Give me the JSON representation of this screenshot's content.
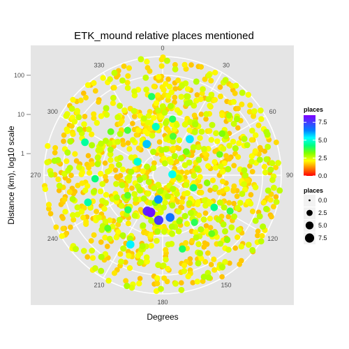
{
  "chart_data": {
    "type": "scatter",
    "coord": "polar",
    "title": "ETK_mound relative places mentioned",
    "xlabel": "Degrees",
    "ylabel": "Distance (km), log10 scale",
    "theta_ticks": [
      0,
      30,
      60,
      90,
      120,
      150,
      180,
      210,
      240,
      270,
      300,
      330
    ],
    "theta_labels": [
      "0",
      "30",
      "60",
      "90",
      "120",
      "150",
      "180",
      "210",
      "240",
      "270",
      "300",
      "330"
    ],
    "r_scale": "log10",
    "r_ticks": [
      1,
      10,
      100
    ],
    "r_tick_labels": [
      "1",
      "10",
      "100"
    ],
    "r_limits": [
      0.5,
      300
    ],
    "panel_background": "#e5e5e5",
    "grid": true,
    "legend_position": "right",
    "color_legend": {
      "title": "places",
      "labels": [
        "0.0",
        "2.5",
        "5.0",
        "7.5"
      ],
      "range": [
        0,
        8.5
      ],
      "colors": [
        "#ff0000",
        "#ff8000",
        "#ffff00",
        "#80ff00",
        "#00ff80",
        "#00ffff",
        "#0080ff",
        "#4040ff",
        "#8000ff"
      ]
    },
    "size_legend": {
      "title": "places",
      "labels": [
        "0.0",
        "2.5",
        "5.0",
        "7.5"
      ],
      "values": [
        0,
        2.5,
        5,
        7.5
      ]
    },
    "highlight_points": [
      {
        "theta": 37,
        "r": 4,
        "places": 5.5
      },
      {
        "theta": 333,
        "r": 2.2,
        "places": 5.8
      },
      {
        "theta": 293,
        "r": 40,
        "places": 4.5
      },
      {
        "theta": 298,
        "r": 1.5,
        "places": 5.0
      },
      {
        "theta": 352,
        "r": 30,
        "places": 4.0
      },
      {
        "theta": 352,
        "r": 5,
        "places": 4.8
      },
      {
        "theta": 15,
        "r": 3,
        "places": 3.6
      },
      {
        "theta": 85,
        "r": 0.5,
        "places": 5.2
      },
      {
        "theta": 112,
        "r": 2,
        "places": 4.1
      },
      {
        "theta": 118,
        "r": 25,
        "places": 3.8
      },
      {
        "theta": 267,
        "r": 15,
        "places": 4.2
      },
      {
        "theta": 250,
        "r": 30,
        "places": 4.6
      },
      {
        "theta": 226,
        "r": 25,
        "places": 3.5
      },
      {
        "theta": 203,
        "r": 2.8,
        "places": 7.8
      },
      {
        "theta": 198,
        "r": 2.8,
        "places": 8.2
      },
      {
        "theta": 185,
        "r": 4,
        "places": 7.6
      },
      {
        "theta": 170,
        "r": 3.5,
        "places": 6.6
      },
      {
        "theta": 160,
        "r": 5,
        "places": 3.0
      },
      {
        "theta": 140,
        "r": 25,
        "places": 3.4
      },
      {
        "theta": 135,
        "r": 60,
        "places": 3.0
      },
      {
        "theta": 122,
        "r": 10,
        "places": 4.3
      },
      {
        "theta": 146,
        "r": 8,
        "places": 3.9
      },
      {
        "theta": 205,
        "r": 25,
        "places": 5.4
      },
      {
        "theta": 322,
        "r": 8,
        "places": 3.7
      },
      {
        "theta": 45,
        "r": 2,
        "places": 3.3
      },
      {
        "theta": 10,
        "r": 8,
        "places": 3.9
      },
      {
        "theta": 190,
        "r": 1.2,
        "places": 6.2
      },
      {
        "theta": 195,
        "r": 1.5,
        "places": 3.3
      },
      {
        "theta": 225,
        "r": 5,
        "places": 4.0
      },
      {
        "theta": 70,
        "r": 10,
        "places": 3.3
      },
      {
        "theta": 55,
        "r": 20,
        "places": 3.2
      },
      {
        "theta": 310,
        "r": 15,
        "places": 3.4
      },
      {
        "theta": 165,
        "r": 25,
        "places": 4.0
      },
      {
        "theta": 240,
        "r": 3,
        "places": 3.5
      },
      {
        "theta": 100,
        "r": 4,
        "places": 3.1
      }
    ],
    "background_series": {
      "count": 1100,
      "theta_range": [
        0,
        360
      ],
      "r_range": [
        0.5,
        300
      ],
      "places_range": [
        0,
        3
      ]
    }
  }
}
